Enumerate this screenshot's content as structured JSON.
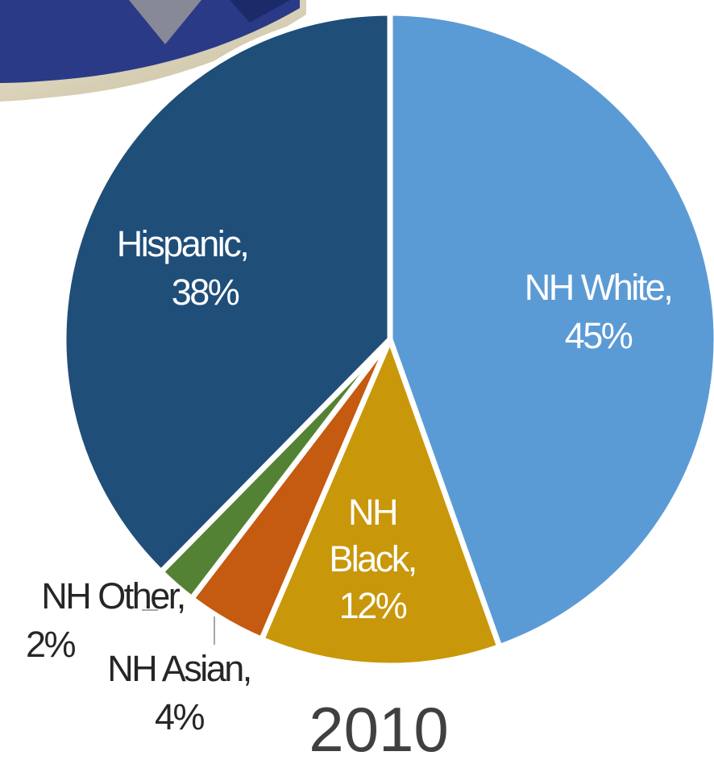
{
  "chart_data": {
    "type": "pie",
    "title": "2010",
    "slices": [
      {
        "name": "NH White",
        "value": 45,
        "label": [
          "NH White,",
          "45%"
        ],
        "color": "#5B9BD5"
      },
      {
        "name": "NH Black",
        "value": 12,
        "label": [
          "NH",
          "Black,",
          "12%"
        ],
        "color": "#C9970A"
      },
      {
        "name": "NH Asian",
        "value": 4,
        "label": [
          "NH Asian,",
          "4%"
        ],
        "color": "#C55A11"
      },
      {
        "name": "NH Other",
        "value": 2,
        "label": [
          "NH Other,",
          "2%"
        ],
        "color": "#548235"
      },
      {
        "name": "Hispanic",
        "value": 38,
        "label": [
          "Hispanic,",
          "38%"
        ],
        "color": "#1F4E79"
      }
    ]
  }
}
